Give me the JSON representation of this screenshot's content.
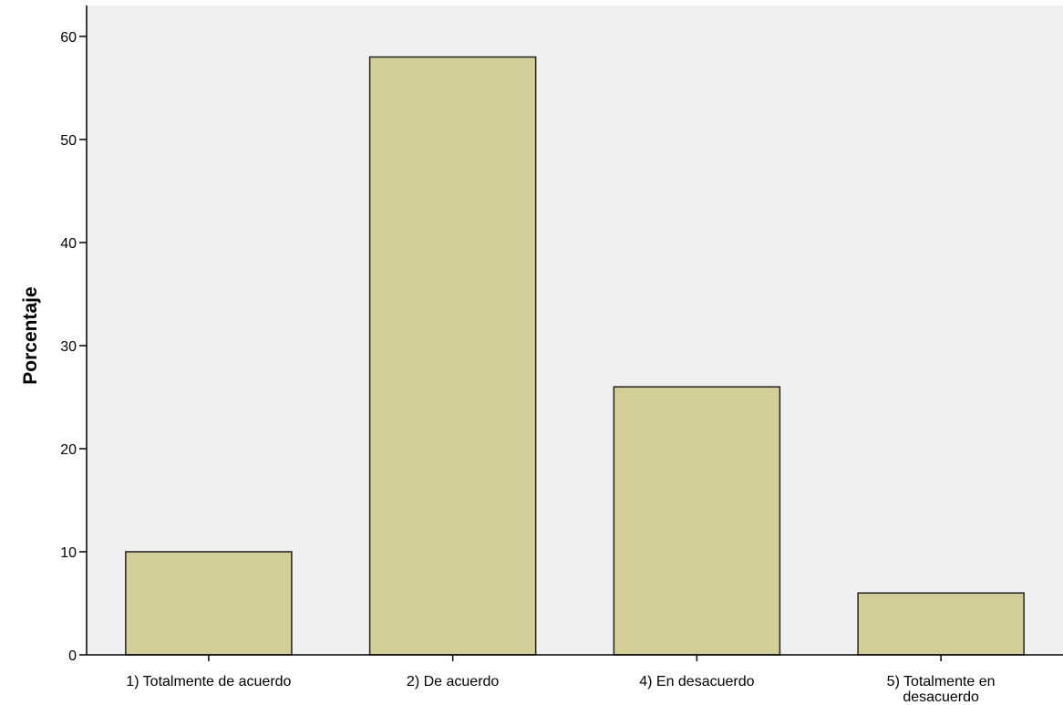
{
  "chart_data": {
    "type": "bar",
    "title": "",
    "xlabel": "",
    "ylabel": "Porcentaje",
    "categories": [
      "1) Totalmente de acuerdo",
      "2) De acuerdo",
      "4)  En desacuerdo",
      "5) Totalmente en desacuerdo"
    ],
    "category_label_lines": [
      [
        "1) Totalmente de acuerdo"
      ],
      [
        "2) De acuerdo"
      ],
      [
        "4)  En desacuerdo"
      ],
      [
        "5) Totalmente en",
        "desacuerdo"
      ]
    ],
    "values": [
      10,
      58,
      26,
      6
    ],
    "ylim": [
      0,
      63
    ],
    "yticks": [
      0,
      10,
      20,
      30,
      40,
      50,
      60
    ],
    "grid": false,
    "legend": "none",
    "colors": {
      "plot_background": "#f0f0f0",
      "bar_fill": "#d3cd98",
      "bar_stroke": "#222222",
      "axis": "#000000"
    }
  }
}
